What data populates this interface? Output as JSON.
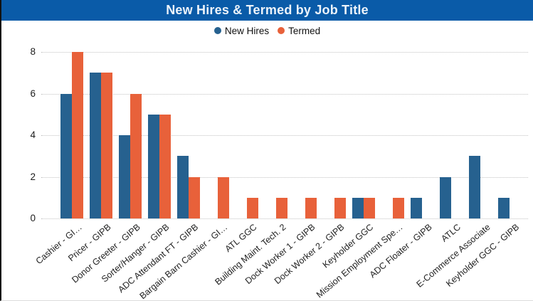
{
  "header": {
    "title": "New Hires & Termed by Job Title"
  },
  "colors": {
    "banner": "#0A5BA8",
    "banner_text": "#ECF3FA",
    "new_hires": "#26618F",
    "termed": "#E8613A",
    "grid": "#C3C3C3",
    "axis_text": "#1C1C1C",
    "border": "#111111"
  },
  "legend": {
    "items": [
      {
        "label": "New Hires",
        "color": "#26618F"
      },
      {
        "label": "Termed",
        "color": "#E8613A"
      }
    ]
  },
  "chart_data": {
    "type": "bar",
    "title": "New Hires & Termed by Job Title",
    "categories": [
      "Cashier - GI…",
      "Pricer - GIPB",
      "Donor Greeter - GIPB",
      "Sorter/Hanger - GIPB",
      "ADC Attendant FT - GIPB",
      "Bargain Barn Cashier - GI…",
      "ATL GGC",
      "Building Maint. Tech. 2",
      "Dock Worker 1 - GIPB",
      "Dock Worker 2 - GIPB",
      "Keyholder GGC",
      "Mission Employment Spe…",
      "ADC Floater - GIPB",
      "ATLC",
      "E-Commerce Associate",
      "Keyholder GGC - GIPB"
    ],
    "series": [
      {
        "name": "New Hires",
        "color": "#26618F",
        "values": [
          6,
          7,
          4,
          5,
          3,
          0,
          0,
          0,
          0,
          0,
          1,
          0,
          1,
          2,
          3,
          1
        ]
      },
      {
        "name": "Termed",
        "color": "#E8613A",
        "values": [
          8,
          7,
          6,
          5,
          2,
          2,
          1,
          1,
          1,
          1,
          1,
          1,
          0,
          0,
          0,
          0
        ]
      }
    ],
    "xlabel": "",
    "ylabel": "",
    "ylim": [
      0,
      8
    ],
    "yticks": [
      0,
      2,
      4,
      6,
      8
    ],
    "grid": "horizontal-dotted",
    "legend_position": "top-center",
    "x_label_rotation_deg": -40
  }
}
